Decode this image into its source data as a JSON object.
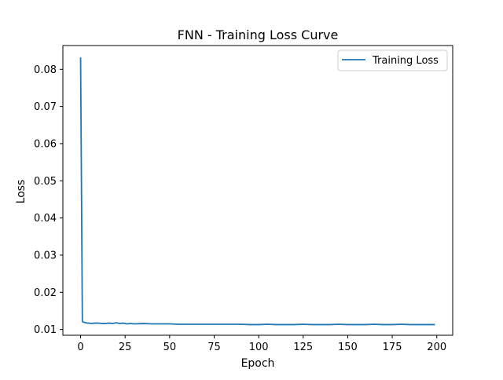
{
  "chart_data": {
    "type": "line",
    "title": "FNN - Training Loss Curve",
    "xlabel": "Epoch",
    "ylabel": "Loss",
    "xlim": [
      -9.95,
      208.95
    ],
    "ylim": [
      0.00844,
      0.0864
    ],
    "xticks": [
      0,
      25,
      50,
      75,
      100,
      125,
      150,
      175,
      200
    ],
    "yticks": [
      0.01,
      0.02,
      0.03,
      0.04,
      0.05,
      0.06,
      0.07,
      0.08
    ],
    "ytick_labels": [
      "0.01",
      "0.02",
      "0.03",
      "0.04",
      "0.05",
      "0.06",
      "0.07",
      "0.08"
    ],
    "grid": false,
    "legend": "upper right",
    "colors": {
      "series": "#1f77b4",
      "axes": "#000000"
    },
    "series": [
      {
        "name": "Training Loss",
        "x": [
          0,
          1,
          2,
          3,
          4,
          5,
          6,
          8,
          10,
          12,
          14,
          16,
          18,
          20,
          22,
          24,
          26,
          28,
          30,
          35,
          40,
          45,
          50,
          55,
          60,
          65,
          70,
          75,
          80,
          85,
          90,
          95,
          100,
          105,
          110,
          115,
          120,
          125,
          130,
          135,
          140,
          145,
          150,
          155,
          160,
          165,
          170,
          175,
          180,
          185,
          190,
          195,
          199
        ],
        "y": [
          0.0832,
          0.0121,
          0.0119,
          0.0118,
          0.0117,
          0.0117,
          0.0116,
          0.0117,
          0.0117,
          0.0116,
          0.0116,
          0.0117,
          0.0116,
          0.0118,
          0.0116,
          0.0117,
          0.0115,
          0.0116,
          0.0115,
          0.0116,
          0.0115,
          0.0115,
          0.0115,
          0.0114,
          0.0114,
          0.0114,
          0.0114,
          0.0114,
          0.0114,
          0.0114,
          0.0114,
          0.0113,
          0.0113,
          0.0114,
          0.0113,
          0.0113,
          0.0113,
          0.0114,
          0.0113,
          0.0113,
          0.0113,
          0.0114,
          0.0113,
          0.0113,
          0.0113,
          0.0114,
          0.0113,
          0.0113,
          0.0114,
          0.0113,
          0.0113,
          0.0113,
          0.0113
        ]
      }
    ]
  }
}
